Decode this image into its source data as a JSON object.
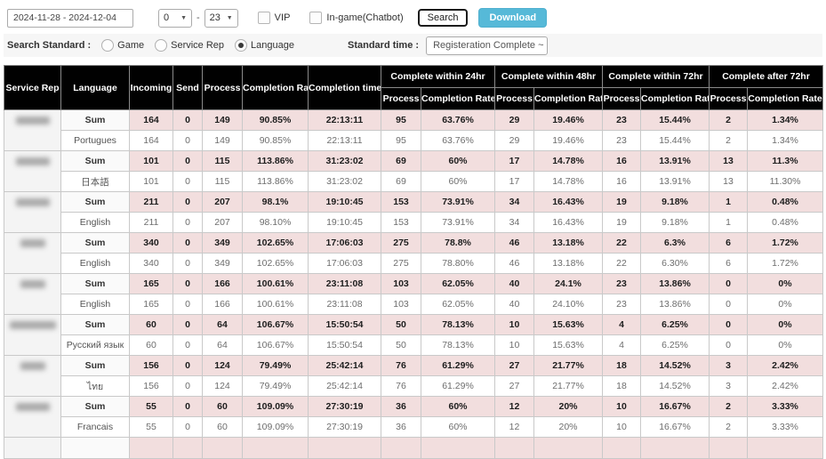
{
  "controls": {
    "date_range": "2024-11-28 - 2024-12-04",
    "hour_from": "0",
    "hour_to": "23",
    "caret": "▼",
    "vip_label": "VIP",
    "ingame_label": "In-game(Chatbot)",
    "search_label": "Search",
    "download_label": "Download",
    "search_standard_label": "Search Standard :",
    "radio_options": [
      "Game",
      "Service Rep",
      "Language"
    ],
    "selected_radio": "Language",
    "standard_time_label": "Standard time :",
    "standard_time_value": "Registeration Complete ~ Cer"
  },
  "table": {
    "columns": [
      "Service Rep",
      "Language",
      "Incoming",
      "Send",
      "Process",
      "Completion Rate",
      "Completion time"
    ],
    "span_groups": [
      "Complete within 24hr",
      "Complete within 48hr",
      "Complete within 72hr",
      "Complete after 72hr"
    ],
    "sub_columns": [
      "Process",
      "Completion Rate"
    ],
    "sum_label": "Sum",
    "groups": [
      {
        "rep_blob": "normal",
        "language": "Portugues",
        "sum_values": [
          "164",
          "0",
          "149",
          "90.85%",
          "22:13:11",
          "95",
          "63.76%",
          "29",
          "19.46%",
          "23",
          "15.44%",
          "2",
          "1.34%"
        ],
        "lang_values": [
          "164",
          "0",
          "149",
          "90.85%",
          "22:13:11",
          "95",
          "63.76%",
          "29",
          "19.46%",
          "23",
          "15.44%",
          "2",
          "1.34%"
        ]
      },
      {
        "rep_blob": "normal",
        "language": "日本語",
        "sum_values": [
          "101",
          "0",
          "115",
          "113.86%",
          "31:23:02",
          "69",
          "60%",
          "17",
          "14.78%",
          "16",
          "13.91%",
          "13",
          "11.3%"
        ],
        "lang_values": [
          "101",
          "0",
          "115",
          "113.86%",
          "31:23:02",
          "69",
          "60%",
          "17",
          "14.78%",
          "16",
          "13.91%",
          "13",
          "11.30%"
        ]
      },
      {
        "rep_blob": "normal",
        "language": "English",
        "sum_values": [
          "211",
          "0",
          "207",
          "98.1%",
          "19:10:45",
          "153",
          "73.91%",
          "34",
          "16.43%",
          "19",
          "9.18%",
          "1",
          "0.48%"
        ],
        "lang_values": [
          "211",
          "0",
          "207",
          "98.10%",
          "19:10:45",
          "153",
          "73.91%",
          "34",
          "16.43%",
          "19",
          "9.18%",
          "1",
          "0.48%"
        ]
      },
      {
        "rep_blob": "short",
        "language": "English",
        "sum_values": [
          "340",
          "0",
          "349",
          "102.65%",
          "17:06:03",
          "275",
          "78.8%",
          "46",
          "13.18%",
          "22",
          "6.3%",
          "6",
          "1.72%"
        ],
        "lang_values": [
          "340",
          "0",
          "349",
          "102.65%",
          "17:06:03",
          "275",
          "78.80%",
          "46",
          "13.18%",
          "22",
          "6.30%",
          "6",
          "1.72%"
        ]
      },
      {
        "rep_blob": "short",
        "language": "English",
        "sum_values": [
          "165",
          "0",
          "166",
          "100.61%",
          "23:11:08",
          "103",
          "62.05%",
          "40",
          "24.1%",
          "23",
          "13.86%",
          "0",
          "0%"
        ],
        "lang_values": [
          "165",
          "0",
          "166",
          "100.61%",
          "23:11:08",
          "103",
          "62.05%",
          "40",
          "24.10%",
          "23",
          "13.86%",
          "0",
          "0%"
        ]
      },
      {
        "rep_blob": "wide",
        "language": "Русский язык",
        "sum_values": [
          "60",
          "0",
          "64",
          "106.67%",
          "15:50:54",
          "50",
          "78.13%",
          "10",
          "15.63%",
          "4",
          "6.25%",
          "0",
          "0%"
        ],
        "lang_values": [
          "60",
          "0",
          "64",
          "106.67%",
          "15:50:54",
          "50",
          "78.13%",
          "10",
          "15.63%",
          "4",
          "6.25%",
          "0",
          "0%"
        ]
      },
      {
        "rep_blob": "short",
        "language": "ไทย",
        "sum_values": [
          "156",
          "0",
          "124",
          "79.49%",
          "25:42:14",
          "76",
          "61.29%",
          "27",
          "21.77%",
          "18",
          "14.52%",
          "3",
          "2.42%"
        ],
        "lang_values": [
          "156",
          "0",
          "124",
          "79.49%",
          "25:42:14",
          "76",
          "61.29%",
          "27",
          "21.77%",
          "18",
          "14.52%",
          "3",
          "2.42%"
        ]
      },
      {
        "rep_blob": "normal",
        "language": "Francais",
        "sum_values": [
          "55",
          "0",
          "60",
          "109.09%",
          "27:30:19",
          "36",
          "60%",
          "12",
          "20%",
          "10",
          "16.67%",
          "2",
          "3.33%"
        ],
        "lang_values": [
          "55",
          "0",
          "60",
          "109.09%",
          "27:30:19",
          "36",
          "60%",
          "12",
          "20%",
          "10",
          "16.67%",
          "2",
          "3.33%"
        ]
      }
    ]
  },
  "colors": {
    "header_bg": "#010101",
    "sum_row_bg": "#f2dede",
    "download_btn": "#56b9d8",
    "grid_border": "#c9c9c9"
  }
}
